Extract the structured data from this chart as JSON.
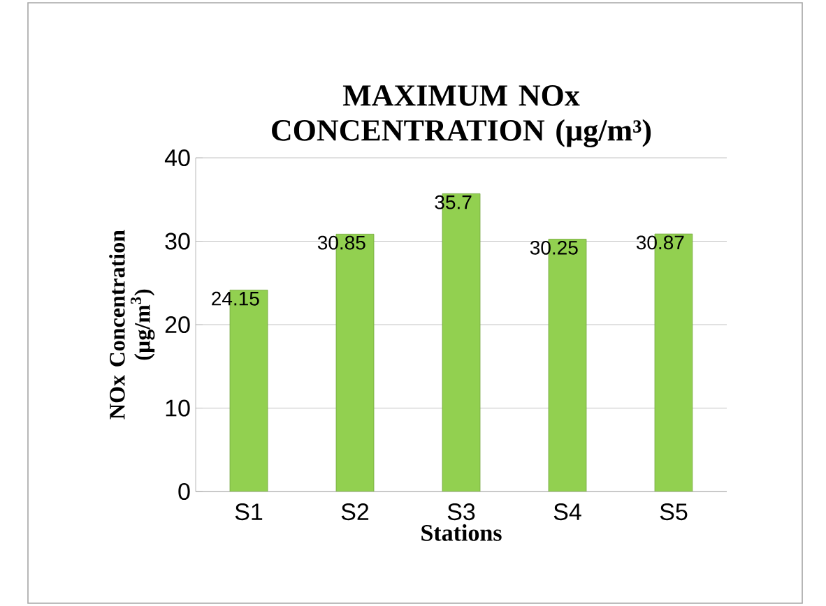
{
  "chart_data": {
    "type": "bar",
    "title": "MAXIMUM NOx CONCENTRATION  (µg/m³)",
    "xlabel": "Stations",
    "ylabel": "NOx Concentration (µg/m$^{3}$)",
    "categories": [
      "S1",
      "S2",
      "S3",
      "S4",
      "S5"
    ],
    "values": [
      24.15,
      30.85,
      35.7,
      30.25,
      30.87
    ],
    "color": "#92d050",
    "ylim": [
      0,
      40
    ],
    "yticks": [
      0,
      10,
      20,
      30,
      40
    ],
    "grid": "y",
    "data_labels": true
  }
}
